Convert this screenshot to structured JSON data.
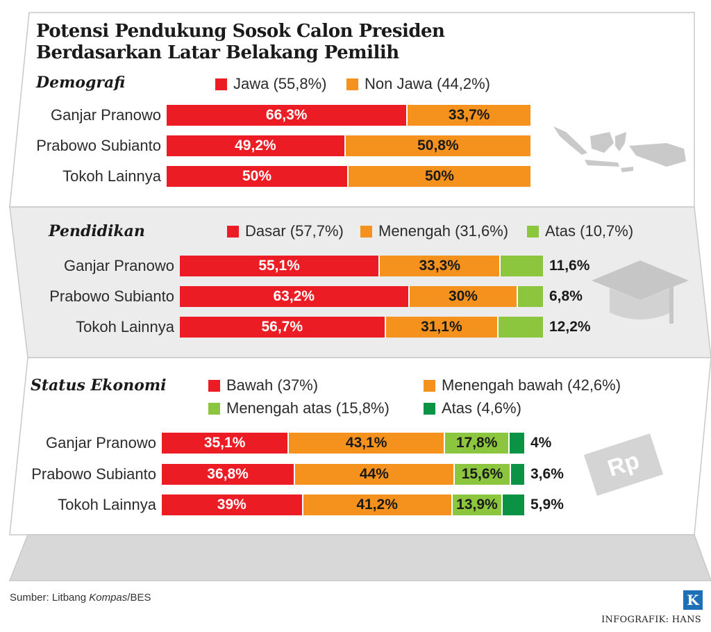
{
  "title_line1": "Potensi Pendukung Sosok Calon Presiden",
  "title_line2": "Berdasarkan Latar Belakang Pemilih",
  "colors": {
    "red": "#ec1c24",
    "orange": "#f5921e",
    "lightgreen": "#8cc63f",
    "darkgreen": "#0a9345"
  },
  "icons": {
    "map": "indonesia-map-icon",
    "cap": "graduation-cap-icon",
    "money": "rupiah-icon"
  },
  "chart_data": [
    {
      "type": "bar",
      "orientation": "horizontal-stacked-100",
      "title": "Demografi",
      "categories": [
        "Ganjar Pranowo",
        "Prabowo Subianto",
        "Tokoh Lainnya"
      ],
      "series": [
        {
          "name": "Jawa (55,8%)",
          "color": "#ec1c24",
          "values": [
            66.3,
            49.2,
            50
          ],
          "labels": [
            "66,3%",
            "49,2%",
            "50%"
          ]
        },
        {
          "name": "Non Jawa (44,2%)",
          "color": "#f5921e",
          "values": [
            33.7,
            50.8,
            50
          ],
          "labels": [
            "33,7%",
            "50,8%",
            "50%"
          ]
        }
      ]
    },
    {
      "type": "bar",
      "orientation": "horizontal-stacked-100",
      "title": "Pendidikan",
      "categories": [
        "Ganjar Pranowo",
        "Prabowo Subianto",
        "Tokoh Lainnya"
      ],
      "series": [
        {
          "name": "Dasar (57,7%)",
          "color": "#ec1c24",
          "values": [
            55.1,
            63.2,
            56.7
          ],
          "labels": [
            "55,1%",
            "63,2%",
            "56,7%"
          ]
        },
        {
          "name": "Menengah (31,6%)",
          "color": "#f5921e",
          "values": [
            33.3,
            30,
            31.1
          ],
          "labels": [
            "33,3%",
            "30%",
            "31,1%"
          ]
        },
        {
          "name": "Atas (10,7%)",
          "color": "#8cc63f",
          "values": [
            11.6,
            6.8,
            12.2
          ],
          "labels": [
            "11,6%",
            "6,8%",
            "12,2%"
          ],
          "label_outside": true
        }
      ]
    },
    {
      "type": "bar",
      "orientation": "horizontal-stacked-100",
      "title": "Status Ekonomi",
      "categories": [
        "Ganjar Pranowo",
        "Prabowo Subianto",
        "Tokoh Lainnya"
      ],
      "series": [
        {
          "name": "Bawah (37%)",
          "color": "#ec1c24",
          "values": [
            35.1,
            36.8,
            39
          ],
          "labels": [
            "35,1%",
            "36,8%",
            "39%"
          ]
        },
        {
          "name": "Menengah bawah (42,6%)",
          "color": "#f5921e",
          "values": [
            43.1,
            44,
            41.2
          ],
          "labels": [
            "43,1%",
            "44%",
            "41,2%"
          ]
        },
        {
          "name": "Menengah atas (15,8%)",
          "color": "#8cc63f",
          "values": [
            17.8,
            15.6,
            13.9
          ],
          "labels": [
            "17,8%",
            "15,6%",
            "13,9%"
          ]
        },
        {
          "name": "Atas (4,6%)",
          "color": "#0a9345",
          "values": [
            4,
            3.6,
            5.9
          ],
          "labels": [
            "4%",
            "3,6%",
            "5,9%"
          ],
          "label_outside": true
        }
      ]
    }
  ],
  "rp_label": "Rp",
  "source_prefix": "Sumber: Litbang ",
  "source_italic": "Kompas",
  "source_suffix": "/BES",
  "logo_letter": "K",
  "credit": "INFOGRAFIK: HANS"
}
